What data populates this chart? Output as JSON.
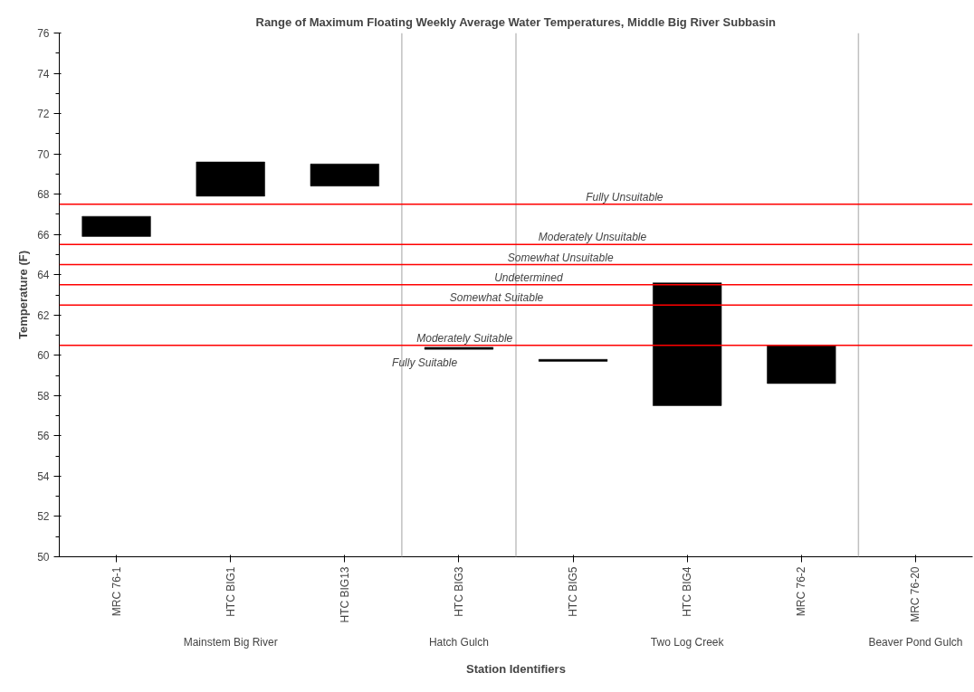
{
  "chart_data": {
    "type": "bar",
    "title": "Range of Maximum Floating Weekly Average Water Temperatures, Middle Big River Subbasin",
    "xlabel": "Station Identifiers",
    "ylabel": "Temperature (F)",
    "categories": [
      "MRC 76-1",
      "HTC BIG1",
      "HTC BIG13",
      "HTC BIG3",
      "HTC BIG5",
      "HTC BIG4",
      "MRC 76-2",
      "MRC 76-20"
    ],
    "base": [
      65.9,
      67.9,
      68.4,
      60.3,
      59.7,
      57.5,
      58.6,
      null
    ],
    "values": [
      1.0,
      1.7,
      1.1,
      0.1,
      0.1,
      6.1,
      1.9,
      null
    ],
    "color": "#000000",
    "ylim": [
      50,
      76
    ],
    "yticks": [
      50,
      {
        "value": 51,
        "label": null
      },
      52,
      {
        "value": 53,
        "label": null
      },
      54,
      {
        "value": 55,
        "label": null
      },
      56,
      {
        "value": 57,
        "label": null
      },
      58,
      {
        "value": 59,
        "label": null
      },
      60,
      {
        "value": 61,
        "label": null
      },
      62,
      {
        "value": 63,
        "label": null
      },
      64,
      {
        "value": 65,
        "label": null
      },
      66,
      {
        "value": 67,
        "label": null
      },
      68,
      {
        "value": 69,
        "label": null
      },
      70,
      {
        "value": 71,
        "label": null
      },
      72,
      {
        "value": 73,
        "label": null
      },
      74,
      {
        "value": 75,
        "label": null
      },
      76
    ],
    "grid": false,
    "ref_lines": [
      {
        "axis": "y",
        "value": 67.5,
        "label": "Fully Unsuitable",
        "color": "#ff0000"
      },
      {
        "axis": "y",
        "value": 65.5,
        "label": "Moderately Unsuitable",
        "color": "#ff0000"
      },
      {
        "axis": "y",
        "value": 64.5,
        "label": "Somewhat Unsuitable",
        "color": "#ff0000"
      },
      {
        "axis": "y",
        "value": 63.5,
        "label": "Undetermined",
        "color": "#ff0000"
      },
      {
        "axis": "y",
        "value": 62.5,
        "label": "Somewhat Suitable",
        "color": "#ff0000"
      },
      {
        "axis": "y",
        "value": 60.5,
        "label": "Moderately Suitable",
        "color": "#ff0000"
      }
    ],
    "annotations": [
      "Fully Suitable",
      "Mainstem Big River",
      "Hatch Gulch",
      "Two Log Creek",
      "Beaver Pond Gulch"
    ]
  }
}
